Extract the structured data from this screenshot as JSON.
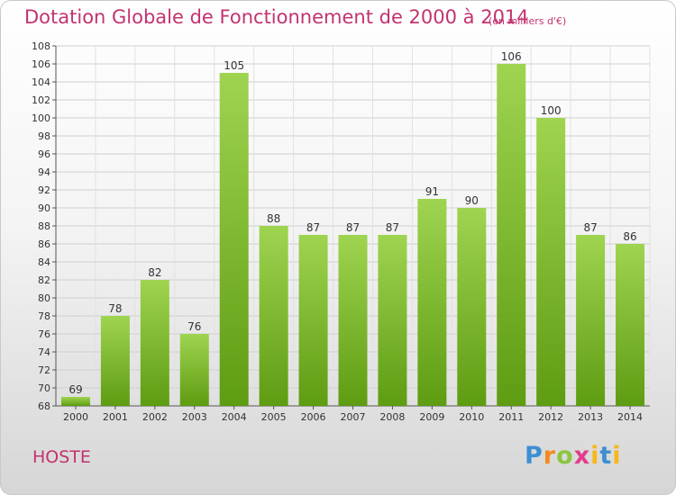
{
  "header": {
    "title": "Dotation Globale de Fonctionnement de 2000 à 2014",
    "subtitle": "(en milliers d'€)"
  },
  "footer": {
    "city": "HOSTE",
    "logo_text": "Proxiti"
  },
  "colors": {
    "title": "#c2336f",
    "bar_top": "#9fd450",
    "bar_bottom": "#5e9c12",
    "axis": "#333333"
  },
  "chart_data": {
    "type": "bar",
    "categories": [
      "2000",
      "2001",
      "2002",
      "2003",
      "2004",
      "2005",
      "2006",
      "2007",
      "2008",
      "2009",
      "2010",
      "2011",
      "2012",
      "2013",
      "2014"
    ],
    "values": [
      69,
      78,
      82,
      76,
      105,
      88,
      87,
      87,
      87,
      91,
      90,
      106,
      100,
      87,
      86
    ],
    "ylim": [
      68,
      108
    ],
    "yticks": [
      68,
      70,
      72,
      74,
      76,
      78,
      80,
      82,
      84,
      86,
      88,
      90,
      92,
      94,
      96,
      98,
      100,
      102,
      104,
      106,
      108
    ],
    "grid": true,
    "xlabel": "",
    "ylabel": ""
  }
}
